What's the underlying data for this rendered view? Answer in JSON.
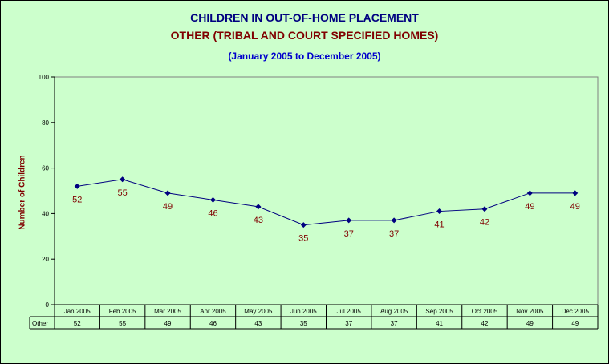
{
  "chart_data": {
    "type": "line",
    "title": "CHILDREN IN OUT-OF-HOME PLACEMENT",
    "subtitle": "OTHER (TRIBAL AND COURT SPECIFIED HOMES)",
    "date_range": "(January 2005 to December 2005)",
    "xlabel": "",
    "ylabel": "Number of Children",
    "ylim": [
      0,
      100
    ],
    "yticks": [
      "0",
      "20",
      "40",
      "60",
      "80",
      "100"
    ],
    "categories": [
      "Jan 2005",
      "Feb 2005",
      "Mar 2005",
      "Apr 2005",
      "May 2005",
      "Jun 2005",
      "Jul 2005",
      "Aug 2005",
      "Sep 2005",
      "Oct 2005",
      "Nov 2005",
      "Dec 2005"
    ],
    "series": [
      {
        "name": "Other",
        "values": [
          52,
          55,
          49,
          46,
          43,
          35,
          37,
          37,
          41,
          42,
          49,
          49
        ]
      }
    ],
    "grid": false,
    "legend": "none",
    "data_table": true
  },
  "colors": {
    "background": "#ccffcc",
    "plot_area": "#ccffcc",
    "line": "#000080",
    "marker": "#000080",
    "data_label": "#800000",
    "title": "#000080",
    "subtitle": "#800000",
    "date_range": "#0000cc"
  }
}
